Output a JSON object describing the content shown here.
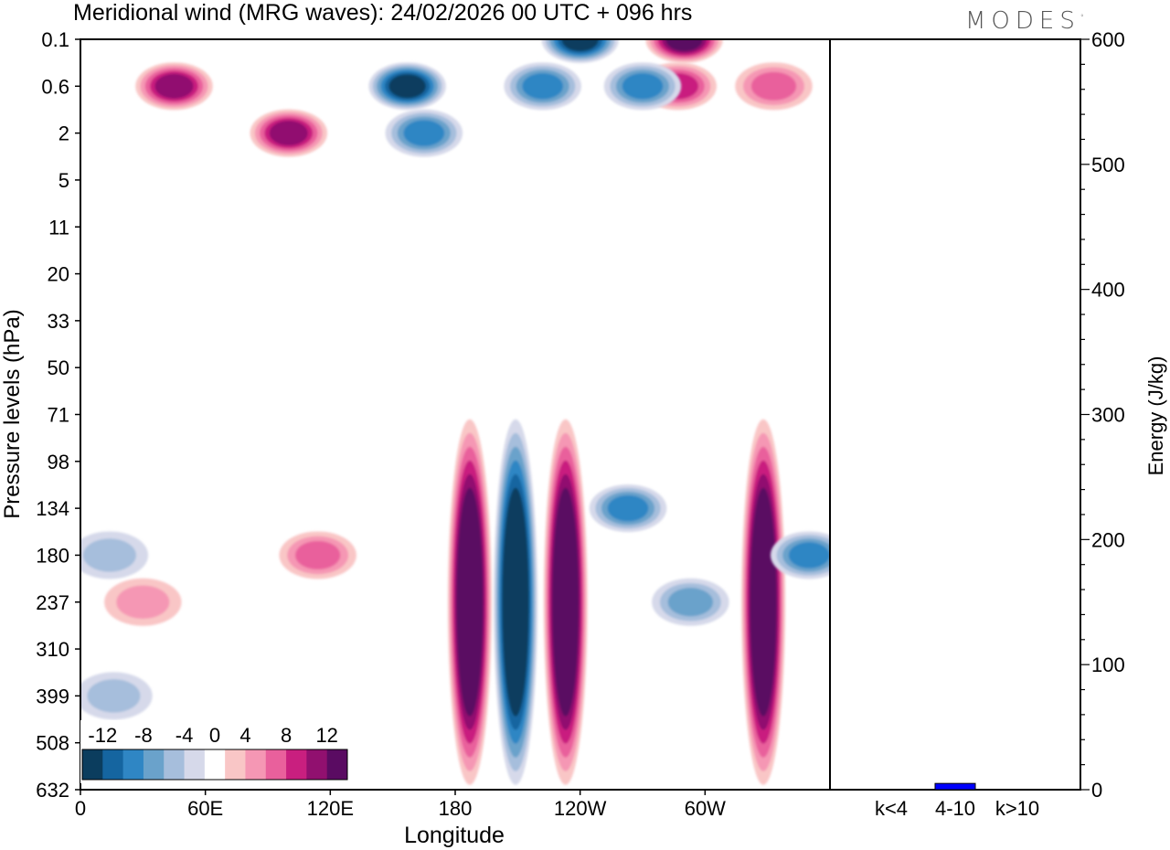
{
  "title": "Meridional wind (MRG waves):  24/02/2026  00 UTC  + 096 hrs",
  "logo": {
    "text": "MODES",
    "mark": "°"
  },
  "chart_data": [
    {
      "type": "heatmap",
      "title": "Meridional wind (MRG waves):  24/02/2026  00 UTC  + 096 hrs",
      "xlabel": "Longitude",
      "ylabel": "Pressure levels (hPa)",
      "x_ticks": [
        "0",
        "60E",
        "120E",
        "180",
        "120W",
        "60W"
      ],
      "x_tick_degrees": [
        0,
        60,
        120,
        180,
        240,
        300
      ],
      "xlim": [
        0,
        360
      ],
      "y_ticks": [
        "0.1",
        "0.6",
        "2",
        "5",
        "11",
        "20",
        "33",
        "50",
        "71",
        "98",
        "134",
        "180",
        "237",
        "310",
        "399",
        "508",
        "632"
      ],
      "colorbar": {
        "labels": [
          "-12",
          "-8",
          "-4",
          "0",
          "4",
          "8",
          "12"
        ],
        "levels": [
          -14,
          -12,
          -10,
          -8,
          -6,
          -4,
          -2,
          2,
          4,
          6,
          8,
          10,
          12,
          14
        ],
        "colors": [
          "#0b3d5e",
          "#1565a0",
          "#2f86c4",
          "#6aa2cb",
          "#a6bedc",
          "#d6d9ea",
          "#ffffff",
          "#f9c6c6",
          "#f597b4",
          "#e9609c",
          "#c91f7f",
          "#91106f",
          "#5a0b62"
        ]
      },
      "features": [
        {
          "lon": 157,
          "level": "0.6",
          "v": -13
        },
        {
          "lon": 240,
          "level": "0.1",
          "v": -12
        },
        {
          "lon": 45,
          "level": "0.6",
          "v": 10
        },
        {
          "lon": 100,
          "level": "2",
          "v": 11
        },
        {
          "lon": 165,
          "level": "2",
          "v": -8
        },
        {
          "lon": 290,
          "level": "0.1",
          "v": 12
        },
        {
          "lon": 287,
          "level": "0.6",
          "v": 9
        },
        {
          "lon": 222,
          "level": "0.6",
          "v": -8
        },
        {
          "lon": 270,
          "level": "0.6",
          "v": -8
        },
        {
          "lon": 333,
          "level": "0.6",
          "v": 7
        },
        {
          "lon": 187,
          "level": "237",
          "v": 16
        },
        {
          "lon": 209,
          "level": "237",
          "v": -16
        },
        {
          "lon": 233,
          "level": "237",
          "v": 17
        },
        {
          "lon": 263,
          "level": "134",
          "v": -9
        },
        {
          "lon": 328,
          "level": "237",
          "v": 16
        },
        {
          "lon": 350,
          "level": "180",
          "v": -9
        },
        {
          "lon": 114,
          "level": "180",
          "v": 7
        },
        {
          "lon": 293,
          "level": "237",
          "v": -6
        },
        {
          "lon": 30,
          "level": "237",
          "v": 5
        },
        {
          "lon": 14,
          "level": "180",
          "v": -5
        },
        {
          "lon": 16,
          "level": "399",
          "v": -5
        }
      ]
    },
    {
      "type": "bar",
      "title": "",
      "xlabel": "",
      "ylabel": "Energy (J/kg)",
      "categories": [
        "k<4",
        "4-10",
        "k>10"
      ],
      "values": [
        0,
        5,
        0
      ],
      "ylim": [
        0,
        600
      ],
      "y_ticks": [
        "0",
        "100",
        "200",
        "300",
        "400",
        "500",
        "600"
      ],
      "bar_color": "#0000ff"
    }
  ]
}
